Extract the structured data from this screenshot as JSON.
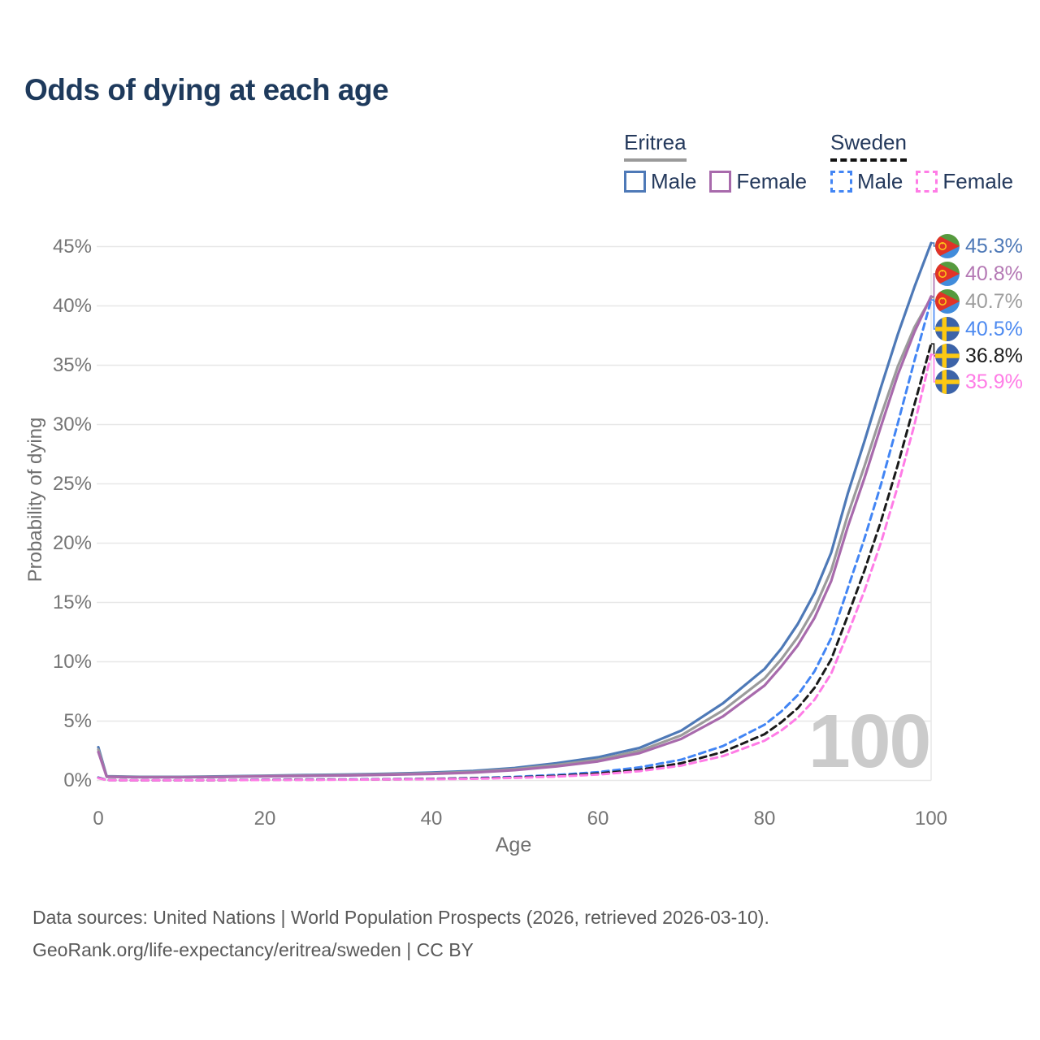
{
  "title": "Odds of dying at each age",
  "legend": {
    "eritrea": {
      "title": "Eritrea",
      "male": "Male",
      "female": "Female"
    },
    "sweden": {
      "title": "Sweden",
      "male": "Male",
      "female": "Female"
    }
  },
  "colors": {
    "title_text": "#1e3a5c",
    "legend_text": "#24395c",
    "eritrea_male": "#4e79b7",
    "eritrea_female": "#a86aac",
    "eritrea_persons": "#9b9b9b",
    "sweden_male": "#4285f4",
    "sweden_persons": "#1a1a1a",
    "sweden_female": "#ff7ce6",
    "grid": "#e7e7e7",
    "axis_text": "#757575",
    "watermark": "#cbcbcb"
  },
  "axes": {
    "y_title": "Probability of dying",
    "x_title": "Age",
    "y_ticks": [
      "0%",
      "5%",
      "10%",
      "15%",
      "20%",
      "25%",
      "30%",
      "35%",
      "40%",
      "45%"
    ],
    "x_ticks": [
      "0",
      "20",
      "40",
      "60",
      "80",
      "100"
    ]
  },
  "watermark": "100",
  "end_labels": [
    {
      "flag": "eritrea",
      "value": "45.3%",
      "end_value": 45.3,
      "line_color": "#4e79b7",
      "text_color": "#4e79b7"
    },
    {
      "flag": "eritrea",
      "value": "40.8%",
      "end_value": 40.8,
      "line_color": "#a86aac",
      "text_color": "#b478b4"
    },
    {
      "flag": "eritrea",
      "value": "40.7%",
      "end_value": 40.7,
      "line_color": "#9b9b9b",
      "text_color": "#9e9e9e"
    },
    {
      "flag": "sweden",
      "value": "40.5%",
      "end_value": 40.5,
      "line_color": "#4285f4",
      "text_color": "#4d8af0"
    },
    {
      "flag": "sweden",
      "value": "36.8%",
      "end_value": 36.8,
      "line_color": "#1a1a1a",
      "text_color": "#1c1c1c"
    },
    {
      "flag": "sweden",
      "value": "35.9%",
      "end_value": 35.9,
      "line_color": "#ff7ce6",
      "text_color": "#ff7ce6"
    }
  ],
  "footer": {
    "line1": "Data sources: United Nations | World Population Prospects (2026, retrieved 2026-03-10).",
    "line2": "GeoRank.org/life-expectancy/eritrea/sweden | CC BY"
  },
  "chart_data": {
    "type": "line",
    "title": "Odds of dying at each age",
    "xlabel": "Age",
    "ylabel": "Probability of dying",
    "xlim": [
      0,
      100
    ],
    "ylim_percent": [
      0,
      45
    ],
    "grid": "horizontal",
    "legend_position": "top-right",
    "watermark_age": "100",
    "ages": [
      0,
      1,
      5,
      10,
      15,
      20,
      25,
      30,
      35,
      40,
      45,
      50,
      55,
      60,
      65,
      70,
      75,
      80,
      82,
      84,
      86,
      88,
      90,
      92,
      94,
      96,
      98,
      100
    ],
    "series": [
      {
        "name": "Eritrea Male",
        "country": "Eritrea",
        "sex": "Male",
        "line_style": "solid",
        "color": "#4e79b7",
        "end_label": "45.3%",
        "values": [
          2.8,
          0.35,
          0.3,
          0.3,
          0.34,
          0.4,
          0.45,
          0.5,
          0.57,
          0.66,
          0.8,
          1.05,
          1.45,
          1.95,
          2.75,
          4.2,
          6.5,
          9.4,
          11.1,
          13.2,
          15.8,
          19.2,
          24.2,
          28.6,
          33.2,
          37.6,
          41.6,
          45.3
        ]
      },
      {
        "name": "Eritrea Persons",
        "country": "Eritrea",
        "sex": "Persons",
        "line_style": "solid",
        "color": "#9b9b9b",
        "end_label": "40.7%",
        "values": [
          2.6,
          0.33,
          0.28,
          0.28,
          0.31,
          0.37,
          0.41,
          0.46,
          0.52,
          0.6,
          0.72,
          0.95,
          1.3,
          1.75,
          2.5,
          3.8,
          5.9,
          8.6,
          10.2,
          12.1,
          14.5,
          17.7,
          22.4,
          26.5,
          30.8,
          34.9,
          38.2,
          40.7
        ]
      },
      {
        "name": "Eritrea Female",
        "country": "Eritrea",
        "sex": "Female",
        "line_style": "solid",
        "color": "#a86aac",
        "end_label": "40.8%",
        "values": [
          2.4,
          0.3,
          0.26,
          0.26,
          0.29,
          0.34,
          0.38,
          0.42,
          0.48,
          0.55,
          0.66,
          0.86,
          1.18,
          1.6,
          2.3,
          3.5,
          5.4,
          8.0,
          9.6,
          11.4,
          13.7,
          16.8,
          21.4,
          25.5,
          29.9,
          34.2,
          37.8,
          40.8
        ]
      },
      {
        "name": "Sweden Male",
        "country": "Sweden",
        "sex": "Male",
        "line_style": "dashed",
        "color": "#4285f4",
        "end_label": "40.5%",
        "values": [
          0.25,
          0.03,
          0.01,
          0.01,
          0.03,
          0.07,
          0.08,
          0.09,
          0.11,
          0.14,
          0.2,
          0.3,
          0.46,
          0.7,
          1.1,
          1.75,
          2.9,
          4.7,
          5.8,
          7.2,
          9.2,
          12.0,
          16.2,
          20.4,
          25.0,
          30.1,
          35.4,
          40.5
        ]
      },
      {
        "name": "Sweden Persons",
        "country": "Sweden",
        "sex": "Persons",
        "line_style": "dashed",
        "color": "#1a1a1a",
        "end_label": "36.8%",
        "values": [
          0.22,
          0.03,
          0.01,
          0.01,
          0.02,
          0.05,
          0.06,
          0.07,
          0.09,
          0.12,
          0.17,
          0.25,
          0.38,
          0.58,
          0.9,
          1.45,
          2.4,
          3.9,
          4.9,
          6.1,
          7.8,
          10.2,
          13.9,
          17.7,
          21.9,
          26.6,
          31.7,
          36.8
        ]
      },
      {
        "name": "Sweden Female",
        "country": "Sweden",
        "sex": "Female",
        "line_style": "dashed",
        "color": "#ff7ce6",
        "end_label": "35.9%",
        "values": [
          0.2,
          0.02,
          0.01,
          0.01,
          0.02,
          0.04,
          0.05,
          0.06,
          0.08,
          0.1,
          0.14,
          0.21,
          0.32,
          0.49,
          0.78,
          1.25,
          2.05,
          3.35,
          4.2,
          5.3,
          6.8,
          9.0,
          12.4,
          16.0,
          20.1,
          24.8,
          30.0,
          35.9
        ]
      }
    ]
  }
}
